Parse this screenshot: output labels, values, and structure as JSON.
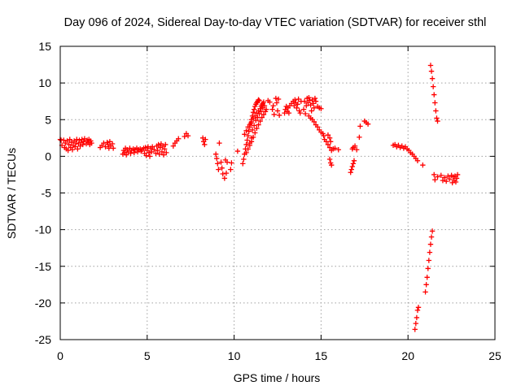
{
  "chart_data": {
    "type": "scatter",
    "title": "Day 096 of 2024, Sidereal Day-to-day VTEC variation (SDTVAR) for receiver sthl",
    "xlabel": "GPS time / hours",
    "ylabel": "SDTVAR / TECUs",
    "xlim": [
      0,
      25
    ],
    "ylim": [
      -25,
      15
    ],
    "xticks": [
      "0",
      "5",
      "10",
      "15",
      "20",
      "25"
    ],
    "yticks": [
      "15",
      "10",
      "5",
      "0",
      "-5",
      "-10",
      "-15",
      "-20",
      "-25"
    ],
    "grid": true,
    "marker": "plus",
    "color": "#ff0000",
    "series": [
      {
        "name": "SDTVAR",
        "points": [
          [
            0.0,
            2.3
          ],
          [
            0.05,
            2.2
          ],
          [
            0.1,
            1.5
          ],
          [
            0.2,
            2.2
          ],
          [
            0.25,
            1.2
          ],
          [
            0.3,
            1.8
          ],
          [
            0.35,
            1.0
          ],
          [
            0.4,
            2.1
          ],
          [
            0.45,
            0.8
          ],
          [
            0.5,
            1.6
          ],
          [
            0.55,
            2.3
          ],
          [
            0.6,
            1.2
          ],
          [
            0.65,
            1.9
          ],
          [
            0.7,
            0.9
          ],
          [
            0.75,
            1.5
          ],
          [
            0.8,
            2.1
          ],
          [
            0.85,
            1.3
          ],
          [
            0.9,
            1.8
          ],
          [
            0.95,
            2.3
          ],
          [
            1.0,
            1.0
          ],
          [
            1.05,
            1.7
          ],
          [
            1.1,
            2.2
          ],
          [
            1.15,
            1.4
          ],
          [
            1.2,
            1.9
          ],
          [
            1.25,
            2.3
          ],
          [
            1.3,
            1.6
          ],
          [
            1.35,
            2.0
          ],
          [
            1.4,
            2.4
          ],
          [
            1.5,
            1.7
          ],
          [
            1.55,
            2.2
          ],
          [
            1.6,
            1.9
          ],
          [
            1.65,
            2.3
          ],
          [
            1.7,
            1.6
          ],
          [
            1.75,
            2.1
          ],
          [
            1.8,
            1.8
          ],
          [
            2.3,
            1.2
          ],
          [
            2.4,
            1.5
          ],
          [
            2.5,
            1.8
          ],
          [
            2.6,
            1.3
          ],
          [
            2.7,
            1.9
          ],
          [
            2.75,
            1.6
          ],
          [
            2.8,
            1.1
          ],
          [
            2.85,
            2.0
          ],
          [
            2.9,
            1.4
          ],
          [
            3.0,
            1.7
          ],
          [
            3.05,
            1.1
          ],
          [
            3.6,
            0.3
          ],
          [
            3.65,
            0.8
          ],
          [
            3.7,
            0.5
          ],
          [
            3.75,
            1.1
          ],
          [
            3.8,
            0.2
          ],
          [
            3.85,
            0.9
          ],
          [
            3.9,
            0.6
          ],
          [
            4.0,
            1.1
          ],
          [
            4.05,
            0.4
          ],
          [
            4.1,
            0.8
          ],
          [
            4.2,
            1.0
          ],
          [
            4.25,
            0.5
          ],
          [
            4.3,
            0.9
          ],
          [
            4.4,
            1.1
          ],
          [
            4.45,
            0.6
          ],
          [
            4.5,
            0.9
          ],
          [
            4.6,
            1.0
          ],
          [
            4.65,
            0.7
          ],
          [
            4.7,
            0.9
          ],
          [
            4.8,
            1.1
          ],
          [
            4.85,
            0.4
          ],
          [
            4.9,
            1.2
          ],
          [
            4.95,
            0.1
          ],
          [
            5.0,
            0.8
          ],
          [
            5.05,
            1.3
          ],
          [
            5.1,
            0.5
          ],
          [
            5.15,
            0.0
          ],
          [
            5.2,
            1.1
          ],
          [
            5.25,
            0.6
          ],
          [
            5.3,
            1.3
          ],
          [
            5.4,
            0.9
          ],
          [
            5.5,
            0.4
          ],
          [
            5.55,
            1.4
          ],
          [
            5.6,
            0.8
          ],
          [
            5.65,
            1.6
          ],
          [
            5.7,
            0.3
          ],
          [
            5.75,
            1.2
          ],
          [
            5.8,
            1.7
          ],
          [
            5.85,
            0.6
          ],
          [
            5.9,
            1.4
          ],
          [
            5.95,
            0.2
          ],
          [
            6.0,
            1.0
          ],
          [
            6.05,
            1.6
          ],
          [
            6.1,
            0.5
          ],
          [
            6.5,
            1.4
          ],
          [
            6.6,
            1.8
          ],
          [
            6.7,
            2.1
          ],
          [
            6.8,
            2.4
          ],
          [
            7.15,
            2.7
          ],
          [
            7.25,
            3.1
          ],
          [
            7.35,
            2.8
          ],
          [
            8.2,
            2.5
          ],
          [
            8.25,
            2.0
          ],
          [
            8.3,
            1.6
          ],
          [
            8.35,
            2.3
          ],
          [
            8.95,
            0.3
          ],
          [
            9.0,
            -0.3
          ],
          [
            9.05,
            -1.0
          ],
          [
            9.1,
            -1.8
          ],
          [
            9.15,
            1.8
          ],
          [
            9.25,
            -0.8
          ],
          [
            9.3,
            -1.6
          ],
          [
            9.35,
            -2.4
          ],
          [
            9.45,
            -3.0
          ],
          [
            9.5,
            -0.5
          ],
          [
            9.6,
            -0.8
          ],
          [
            9.55,
            -2.3
          ],
          [
            9.8,
            -1.8
          ],
          [
            9.85,
            -0.9
          ],
          [
            10.2,
            0.7
          ],
          [
            10.5,
            -1.0
          ],
          [
            10.55,
            -0.4
          ],
          [
            10.6,
            0.3
          ],
          [
            10.65,
            1.0
          ],
          [
            10.7,
            1.6
          ],
          [
            10.75,
            2.2
          ],
          [
            10.8,
            2.8
          ],
          [
            10.85,
            3.4
          ],
          [
            10.9,
            4.0
          ],
          [
            10.95,
            4.5
          ],
          [
            11.0,
            5.0
          ],
          [
            11.05,
            5.5
          ],
          [
            11.1,
            6.0
          ],
          [
            11.15,
            6.4
          ],
          [
            11.2,
            6.8
          ],
          [
            11.25,
            7.1
          ],
          [
            11.3,
            7.3
          ],
          [
            11.35,
            7.5
          ],
          [
            11.4,
            7.7
          ],
          [
            11.45,
            7.6
          ],
          [
            10.6,
            3.0
          ],
          [
            10.7,
            3.5
          ],
          [
            10.8,
            4.0
          ],
          [
            10.9,
            4.3
          ],
          [
            11.0,
            4.7
          ],
          [
            11.1,
            5.2
          ],
          [
            11.2,
            5.5
          ],
          [
            11.3,
            5.9
          ],
          [
            11.4,
            6.2
          ],
          [
            11.5,
            6.5
          ],
          [
            11.55,
            6.8
          ],
          [
            11.6,
            7.0
          ],
          [
            11.65,
            7.2
          ],
          [
            11.7,
            7.4
          ],
          [
            10.7,
            0.5
          ],
          [
            10.8,
            1.0
          ],
          [
            10.9,
            1.5
          ],
          [
            11.0,
            2.0
          ],
          [
            11.1,
            2.6
          ],
          [
            11.2,
            3.2
          ],
          [
            11.3,
            3.8
          ],
          [
            11.4,
            4.3
          ],
          [
            11.5,
            4.8
          ],
          [
            11.6,
            5.3
          ],
          [
            11.7,
            5.7
          ],
          [
            11.8,
            6.1
          ],
          [
            11.85,
            6.4
          ],
          [
            10.9,
            1.8
          ],
          [
            11.0,
            2.5
          ],
          [
            11.05,
            3.6
          ],
          [
            11.15,
            4.2
          ],
          [
            11.25,
            4.9
          ],
          [
            11.35,
            5.3
          ],
          [
            11.45,
            5.8
          ],
          [
            11.55,
            6.1
          ],
          [
            11.65,
            6.6
          ],
          [
            11.75,
            6.9
          ],
          [
            11.95,
            7.6
          ],
          [
            12.05,
            7.4
          ],
          [
            12.2,
            6.4
          ],
          [
            12.25,
            6.9
          ],
          [
            12.3,
            5.7
          ],
          [
            12.4,
            7.9
          ],
          [
            12.45,
            7.3
          ],
          [
            12.5,
            6.2
          ],
          [
            12.6,
            5.6
          ],
          [
            12.55,
            7.8
          ],
          [
            12.9,
            5.9
          ],
          [
            12.95,
            6.4
          ],
          [
            13.0,
            6.8
          ],
          [
            13.05,
            6.1
          ],
          [
            13.1,
            6.6
          ],
          [
            13.15,
            5.9
          ],
          [
            13.2,
            6.9
          ],
          [
            13.3,
            7.2
          ],
          [
            13.4,
            7.5
          ],
          [
            13.45,
            6.9
          ],
          [
            13.5,
            7.7
          ],
          [
            13.55,
            7.3
          ],
          [
            13.6,
            6.6
          ],
          [
            13.65,
            7.1
          ],
          [
            13.7,
            7.8
          ],
          [
            13.75,
            6.2
          ],
          [
            13.8,
            5.9
          ],
          [
            13.85,
            7.5
          ],
          [
            14.0,
            6.4
          ],
          [
            14.05,
            7.5
          ],
          [
            14.1,
            5.8
          ],
          [
            14.15,
            6.9
          ],
          [
            14.2,
            7.9
          ],
          [
            14.25,
            7.3
          ],
          [
            14.3,
            8.0
          ],
          [
            14.35,
            7.6
          ],
          [
            14.4,
            7.0
          ],
          [
            14.45,
            6.2
          ],
          [
            14.5,
            7.7
          ],
          [
            14.55,
            7.2
          ],
          [
            14.6,
            6.6
          ],
          [
            14.65,
            7.9
          ],
          [
            14.7,
            7.5
          ],
          [
            14.8,
            6.8
          ],
          [
            14.9,
            6.6
          ],
          [
            15.0,
            6.5
          ],
          [
            14.3,
            5.5
          ],
          [
            14.4,
            5.2
          ],
          [
            14.5,
            5.0
          ],
          [
            14.6,
            4.7
          ],
          [
            14.7,
            4.3
          ],
          [
            14.8,
            4.0
          ],
          [
            14.9,
            3.6
          ],
          [
            15.0,
            3.3
          ],
          [
            15.1,
            3.1
          ],
          [
            15.15,
            2.8
          ],
          [
            15.2,
            2.3
          ],
          [
            15.3,
            2.0
          ],
          [
            15.4,
            1.6
          ],
          [
            15.5,
            1.2
          ],
          [
            15.6,
            0.8
          ],
          [
            15.4,
            2.9
          ],
          [
            15.5,
            2.5
          ],
          [
            15.55,
            2.0
          ],
          [
            15.5,
            -0.4
          ],
          [
            15.55,
            -0.9
          ],
          [
            15.6,
            -1.2
          ],
          [
            15.7,
            1.0
          ],
          [
            15.8,
            1.1
          ],
          [
            16.0,
            0.9
          ],
          [
            16.7,
            -2.2
          ],
          [
            16.75,
            -1.8
          ],
          [
            16.8,
            -1.4
          ],
          [
            16.85,
            -1.0
          ],
          [
            16.9,
            -0.6
          ],
          [
            16.8,
            1.0
          ],
          [
            16.85,
            1.2
          ],
          [
            16.95,
            1.4
          ],
          [
            17.05,
            0.9
          ],
          [
            17.2,
            2.6
          ],
          [
            17.25,
            4.1
          ],
          [
            17.5,
            4.8
          ],
          [
            17.6,
            4.6
          ],
          [
            17.7,
            4.4
          ],
          [
            19.15,
            1.5
          ],
          [
            19.25,
            1.6
          ],
          [
            19.35,
            1.3
          ],
          [
            19.45,
            1.5
          ],
          [
            19.55,
            1.2
          ],
          [
            19.65,
            1.4
          ],
          [
            19.75,
            1.1
          ],
          [
            19.85,
            1.3
          ],
          [
            19.95,
            1.0
          ],
          [
            20.05,
            0.8
          ],
          [
            20.15,
            0.5
          ],
          [
            20.25,
            0.3
          ],
          [
            20.35,
            0.0
          ],
          [
            20.45,
            -0.3
          ],
          [
            20.55,
            -0.6
          ],
          [
            20.85,
            -1.2
          ],
          [
            21.0,
            -18.5
          ],
          [
            21.05,
            -17.5
          ],
          [
            21.1,
            -16.5
          ],
          [
            21.15,
            -15.3
          ],
          [
            21.2,
            -14.2
          ],
          [
            21.25,
            -13.1
          ],
          [
            21.3,
            -12.0
          ],
          [
            21.35,
            -11.0
          ],
          [
            21.4,
            -10.2
          ],
          [
            20.4,
            -23.6
          ],
          [
            20.45,
            -22.8
          ],
          [
            20.5,
            -22.0
          ],
          [
            20.55,
            -21.0
          ],
          [
            20.6,
            -20.6
          ],
          [
            21.3,
            12.4
          ],
          [
            21.35,
            11.6
          ],
          [
            21.4,
            10.6
          ],
          [
            21.45,
            9.5
          ],
          [
            21.5,
            8.4
          ],
          [
            21.55,
            7.3
          ],
          [
            21.6,
            6.2
          ],
          [
            21.65,
            5.2
          ],
          [
            21.7,
            4.8
          ],
          [
            21.5,
            -2.5
          ],
          [
            21.55,
            -3.2
          ],
          [
            21.7,
            -2.8
          ],
          [
            21.9,
            -2.6
          ],
          [
            22.0,
            -3.3
          ],
          [
            22.1,
            -2.9
          ],
          [
            22.2,
            -3.4
          ],
          [
            22.3,
            -2.7
          ],
          [
            22.4,
            -3.1
          ],
          [
            22.5,
            -2.6
          ],
          [
            22.55,
            -3.6
          ],
          [
            22.6,
            -2.8
          ],
          [
            22.65,
            -3.3
          ],
          [
            22.7,
            -2.7
          ],
          [
            22.75,
            -3.5
          ],
          [
            22.8,
            -3.0
          ],
          [
            22.85,
            -2.5
          ]
        ]
      }
    ]
  }
}
